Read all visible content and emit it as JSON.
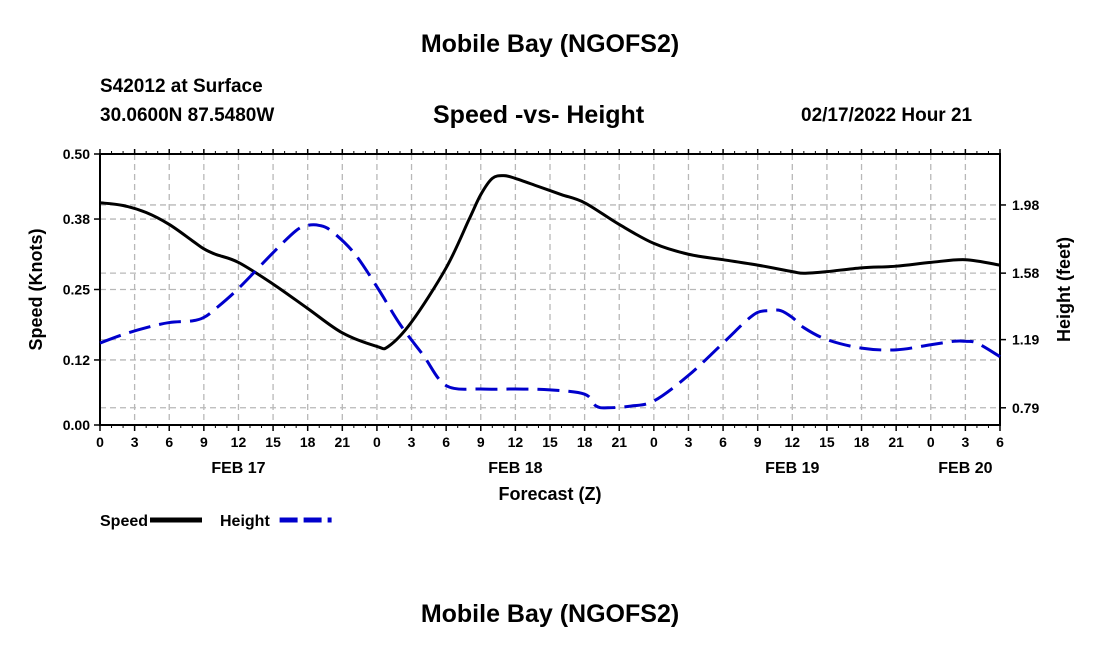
{
  "header": {
    "title": "Mobile Bay (NGOFS2)",
    "station": "S42012 at Surface",
    "coords": "30.0600N  87.5480W",
    "subtitle": "Speed -vs- Height",
    "datetime": "02/17/2022 Hour 21"
  },
  "footer": {
    "title": "Mobile Bay (NGOFS2)"
  },
  "chart_data": {
    "type": "line",
    "xlabel": "Forecast (Z)",
    "ylabel_left": "Speed (Knots)",
    "ylabel_right": "Height (feet)",
    "x_hours_range": [
      0,
      78
    ],
    "x_tick_labels": [
      "0",
      "3",
      "6",
      "9",
      "12",
      "15",
      "18",
      "21",
      "0",
      "3",
      "6",
      "9",
      "12",
      "15",
      "18",
      "21",
      "0",
      "3",
      "6",
      "9",
      "12",
      "15",
      "18",
      "21",
      "0",
      "3",
      "6"
    ],
    "day_labels": [
      {
        "label": "FEB 17",
        "hour": 12
      },
      {
        "label": "FEB 18",
        "hour": 36
      },
      {
        "label": "FEB 19",
        "hour": 60
      },
      {
        "label": "FEB 20",
        "hour": 75
      }
    ],
    "y_left": {
      "ticks": [
        "0.00",
        "0.12",
        "0.25",
        "0.38",
        "0.50"
      ],
      "range": [
        0,
        0.5
      ]
    },
    "y_right": {
      "ticks": [
        "0.79",
        "1.19",
        "1.58",
        "1.98"
      ],
      "tick_values": [
        0.79,
        1.19,
        1.58,
        1.98
      ],
      "range": [
        0.689,
        2.279
      ]
    },
    "grid": true,
    "legend_position": "bottom-left",
    "series": [
      {
        "name": "Speed",
        "axis": "left",
        "color": "#000000",
        "style": "solid",
        "x": [
          0,
          2,
          4,
          6,
          8,
          9,
          10,
          12,
          15,
          18,
          21,
          24,
          25,
          27,
          30,
          32,
          33,
          34,
          35,
          36,
          38,
          40,
          42,
          45,
          48,
          51,
          54,
          57,
          60,
          61,
          63,
          66,
          69,
          72,
          75,
          78
        ],
        "y": [
          0.41,
          0.405,
          0.392,
          0.37,
          0.34,
          0.325,
          0.315,
          0.3,
          0.26,
          0.215,
          0.17,
          0.145,
          0.145,
          0.19,
          0.29,
          0.38,
          0.425,
          0.455,
          0.46,
          0.455,
          0.44,
          0.425,
          0.41,
          0.37,
          0.335,
          0.315,
          0.305,
          0.295,
          0.283,
          0.28,
          0.283,
          0.29,
          0.293,
          0.3,
          0.305,
          0.295
        ]
      },
      {
        "name": "Height",
        "axis": "right",
        "color": "#0000cc",
        "style": "dashed",
        "x": [
          0,
          2,
          4,
          6,
          8,
          9,
          10,
          12,
          15,
          17,
          18,
          19,
          20,
          22,
          24,
          26,
          28,
          30,
          33,
          36,
          39,
          42,
          43,
          44,
          46,
          48,
          51,
          54,
          56,
          57,
          58,
          59,
          60,
          61,
          63,
          66,
          69,
          72,
          74,
          75,
          76,
          78
        ],
        "y": [
          1.17,
          1.22,
          1.26,
          1.29,
          1.3,
          1.32,
          1.37,
          1.49,
          1.7,
          1.83,
          1.86,
          1.86,
          1.83,
          1.7,
          1.5,
          1.28,
          1.1,
          0.92,
          0.9,
          0.9,
          0.895,
          0.87,
          0.8,
          0.79,
          0.8,
          0.83,
          0.98,
          1.17,
          1.3,
          1.35,
          1.36,
          1.36,
          1.32,
          1.26,
          1.19,
          1.14,
          1.13,
          1.16,
          1.18,
          1.18,
          1.17,
          1.09
        ]
      }
    ]
  }
}
